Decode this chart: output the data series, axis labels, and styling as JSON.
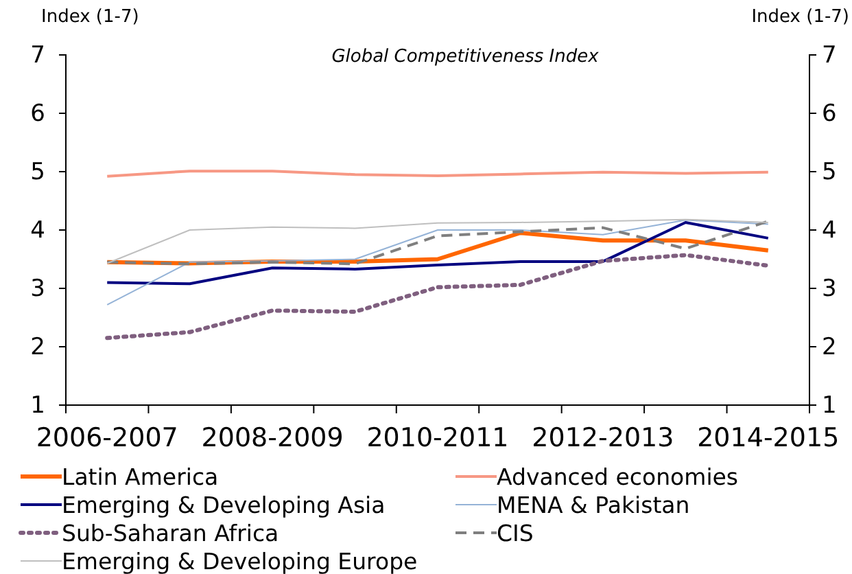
{
  "chart_data": {
    "type": "line",
    "title": "Global Competitiveness Index",
    "ylabel": "Index (1-7)",
    "y2label": "Index (1-7)",
    "categories": [
      "2006-2007",
      null,
      "2008-2009",
      null,
      "2010-2011",
      null,
      "2012-2013",
      null,
      "2014-2015"
    ],
    "ylim": [
      1,
      7
    ],
    "yticks": [
      1,
      2,
      3,
      4,
      5,
      6,
      7
    ],
    "y2lim": [
      1,
      7
    ],
    "y2ticks": [
      1,
      2,
      3,
      4,
      5,
      6,
      7
    ],
    "grid": false,
    "legend": "bottom",
    "marker": "none",
    "series": [
      {
        "name": "Latin America",
        "color": "#ff6600",
        "line_style": "solid",
        "values": [
          3.45,
          3.43,
          3.46,
          3.46,
          3.5,
          3.95,
          3.82,
          3.82,
          3.65
        ]
      },
      {
        "name": "Advanced economies",
        "color": "#f79884",
        "line_style": "solid",
        "values": [
          4.92,
          5.01,
          5.01,
          4.95,
          4.93,
          4.96,
          4.99,
          4.97,
          4.99
        ]
      },
      {
        "name": "Emerging & Developing Asia",
        "color": "#000080",
        "line_style": "solid",
        "values": [
          3.1,
          3.08,
          3.35,
          3.33,
          3.4,
          3.46,
          3.46,
          4.13,
          3.86
        ]
      },
      {
        "name": "MENA & Pakistan",
        "color": "#95b3d7",
        "line_style": "solid",
        "values": [
          2.72,
          3.45,
          3.47,
          3.5,
          4.0,
          4.0,
          3.92,
          4.17,
          4.1
        ]
      },
      {
        "name": "Sub-Saharan Africa",
        "color": "#7f5f7f",
        "line_style": "dotted",
        "values": [
          2.15,
          2.25,
          2.62,
          2.6,
          3.02,
          3.06,
          3.47,
          3.57,
          3.39
        ]
      },
      {
        "name": "CIS",
        "color": "#7f7f7f",
        "line_style": "dashed",
        "values": [
          3.45,
          3.42,
          3.45,
          3.42,
          3.9,
          3.97,
          4.04,
          3.68,
          4.15
        ]
      },
      {
        "name": "Emerging & Developing Europe",
        "color": "#bfbfbf",
        "line_style": "solid",
        "values": [
          3.43,
          4.0,
          4.05,
          4.03,
          4.12,
          4.13,
          4.15,
          4.18,
          4.13
        ]
      }
    ]
  }
}
